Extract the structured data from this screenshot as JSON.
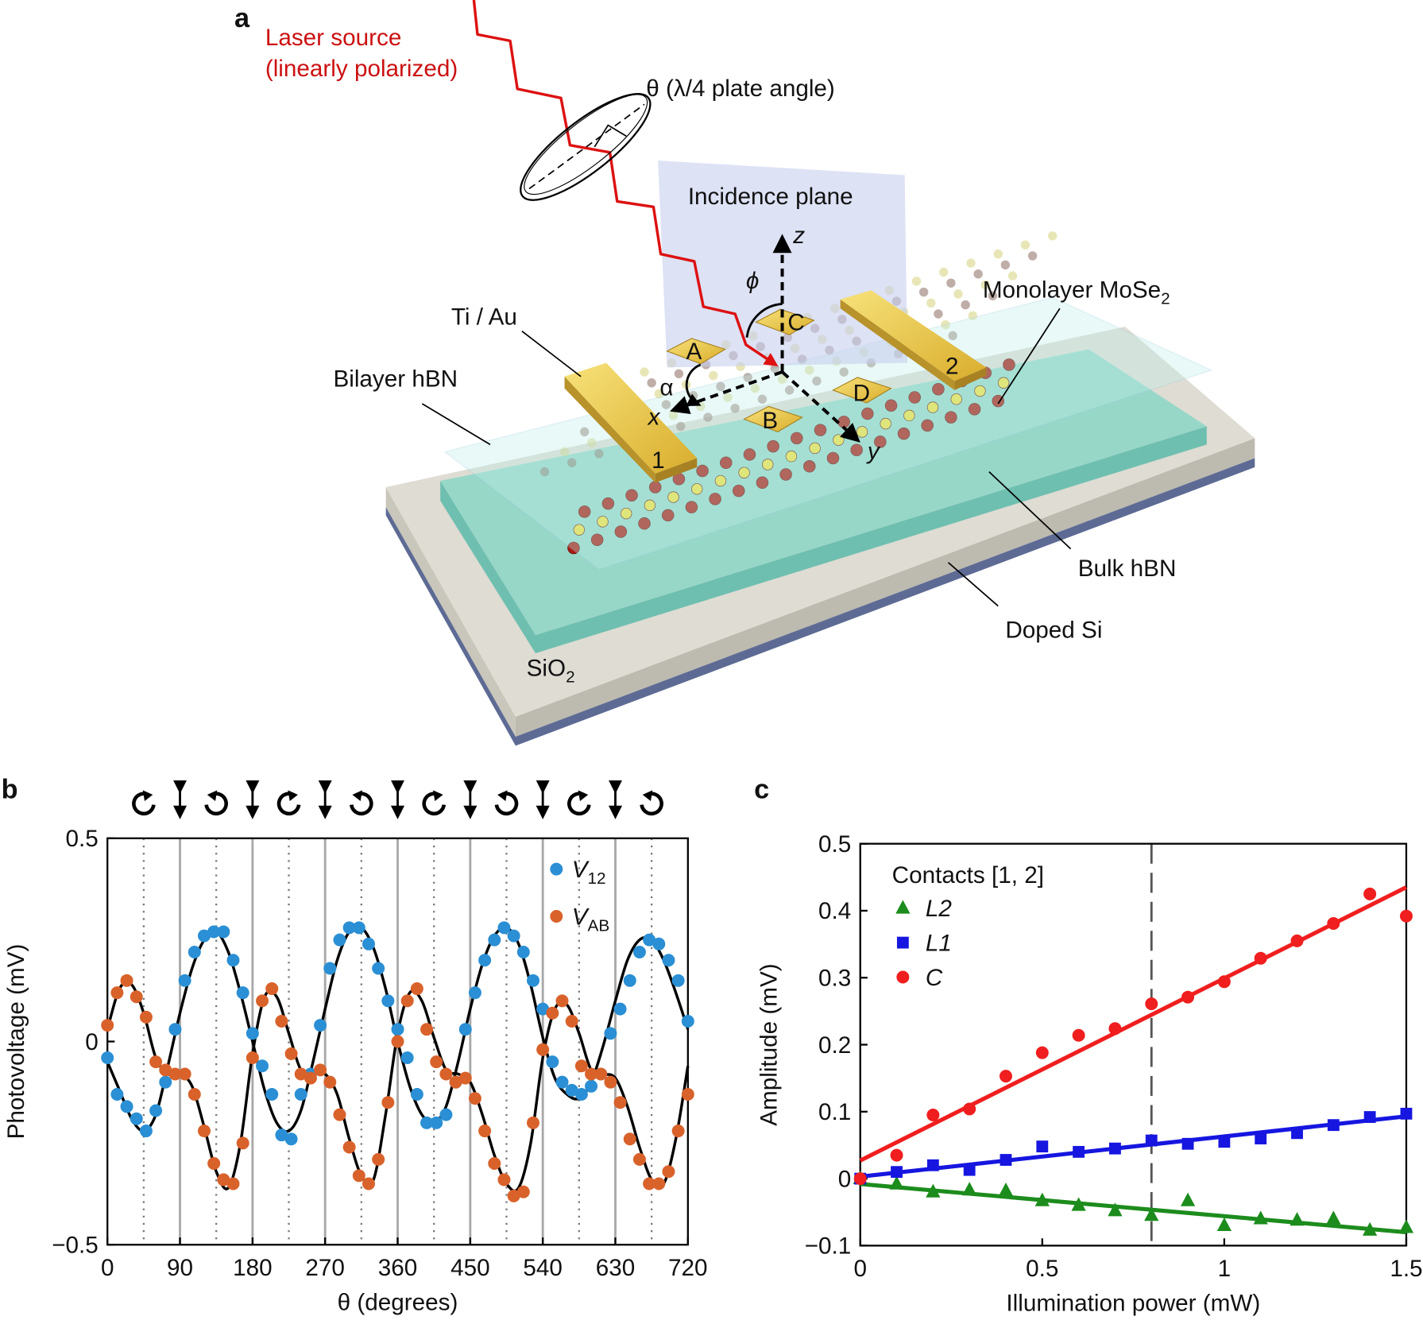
{
  "diagram": {
    "panel_label": "a",
    "laser_source": "Laser source",
    "laser_polarization": "(linearly polarized)",
    "waveplate": "θ (λ/4 plate angle)",
    "incidence_plane": "Incidence plane",
    "axis_z": "z",
    "angle_phi": "ϕ",
    "monolayer": "Monolayer MoSe2",
    "contacts_metal": "Ti / Au",
    "bilayer": "Bilayer hBN",
    "contact_a": "A",
    "contact_b": "B",
    "contact_c": "C",
    "contact_d": "D",
    "contact_1": "1",
    "contact_2": "2",
    "angle_alpha": "α",
    "axis_x": "x",
    "axis_y": "y",
    "bulk": "Bulk hBN",
    "substrate": "Doped Si",
    "oxide": "SiO2"
  },
  "chart_data": [
    {
      "type": "scatter",
      "panel_label": "b",
      "xlabel": "θ (degrees)",
      "ylabel": "Photovoltage (mV)",
      "xlim": [
        0,
        720
      ],
      "ylim": [
        -0.5,
        0.5
      ],
      "xticks": [
        0,
        90,
        180,
        270,
        360,
        450,
        540,
        630,
        720
      ],
      "yticks": [
        0.5,
        0,
        {
          "value": -0.5,
          "label": "−0.5"
        }
      ],
      "legend": "upper right",
      "vlines": {
        "solid": [
          90,
          180,
          270,
          360,
          450,
          540,
          630
        ],
        "dotted": [
          45,
          135,
          225,
          315,
          405,
          495,
          585,
          675
        ]
      },
      "series": [
        {
          "name": "V12",
          "color": "#2a8fd4",
          "marker": "circle",
          "x": [
            0,
            12,
            24,
            36,
            48,
            60,
            72,
            84,
            96,
            108,
            120,
            132,
            144,
            156,
            168,
            180,
            192,
            204,
            216,
            228,
            240,
            252,
            264,
            276,
            288,
            300,
            312,
            324,
            336,
            348,
            360,
            372,
            384,
            396,
            408,
            420,
            432,
            444,
            456,
            468,
            480,
            492,
            504,
            516,
            528,
            540,
            552,
            564,
            576,
            588,
            600,
            612,
            624,
            636,
            648,
            660,
            672,
            684,
            696,
            708,
            720
          ],
          "values": [
            -0.04,
            -0.13,
            -0.16,
            -0.19,
            -0.22,
            -0.17,
            -0.1,
            0.03,
            0.15,
            0.22,
            0.26,
            0.27,
            0.27,
            0.2,
            0.12,
            0.02,
            -0.06,
            -0.13,
            -0.23,
            -0.24,
            -0.13,
            -0.08,
            0.04,
            0.18,
            0.25,
            0.28,
            0.28,
            0.24,
            0.18,
            0.1,
            0.03,
            -0.04,
            -0.13,
            -0.2,
            -0.2,
            -0.18,
            -0.1,
            0.03,
            0.12,
            0.2,
            0.25,
            0.28,
            0.26,
            0.22,
            0.15,
            0.08,
            -0.05,
            -0.1,
            -0.12,
            -0.13,
            -0.11,
            -0.08,
            0.02,
            0.08,
            0.15,
            0.22,
            0.25,
            0.24,
            0.2,
            0.15,
            0.05
          ]
        },
        {
          "name": "VAB",
          "color": "#d9622b",
          "marker": "circle",
          "x": [
            0,
            12,
            24,
            36,
            48,
            60,
            72,
            84,
            96,
            108,
            120,
            132,
            144,
            156,
            168,
            180,
            192,
            204,
            216,
            228,
            240,
            252,
            264,
            276,
            288,
            300,
            312,
            324,
            336,
            348,
            360,
            372,
            384,
            396,
            408,
            420,
            432,
            444,
            456,
            468,
            480,
            492,
            504,
            516,
            528,
            540,
            552,
            564,
            576,
            588,
            600,
            612,
            624,
            636,
            648,
            660,
            672,
            684,
            696,
            708,
            720
          ],
          "values": [
            0.04,
            0.12,
            0.15,
            0.11,
            0.06,
            -0.05,
            -0.07,
            -0.08,
            -0.08,
            -0.13,
            -0.22,
            -0.3,
            -0.34,
            -0.35,
            -0.25,
            -0.04,
            0.1,
            0.13,
            0.05,
            -0.03,
            -0.08,
            -0.09,
            -0.07,
            -0.1,
            -0.18,
            -0.26,
            -0.33,
            -0.35,
            -0.29,
            -0.15,
            0.0,
            0.1,
            0.13,
            0.03,
            -0.05,
            -0.08,
            -0.1,
            -0.09,
            -0.14,
            -0.22,
            -0.3,
            -0.34,
            -0.38,
            -0.37,
            -0.2,
            -0.02,
            0.07,
            0.1,
            0.05,
            -0.06,
            -0.08,
            -0.08,
            -0.1,
            -0.15,
            -0.24,
            -0.29,
            -0.35,
            -0.35,
            -0.32,
            -0.22,
            -0.13
          ]
        },
        {
          "color": "#000000",
          "style": "line",
          "x": [
            0,
            15,
            30,
            45,
            60,
            75,
            90,
            105,
            120,
            135,
            150,
            165,
            180,
            195,
            210,
            225,
            240,
            255,
            270,
            285,
            300,
            315,
            330,
            345,
            360,
            375,
            390,
            405,
            420,
            435,
            450,
            465,
            480,
            495,
            510,
            525,
            540,
            555,
            570,
            585,
            600,
            615,
            630,
            645,
            660,
            675,
            690,
            705,
            720
          ],
          "values": [
            -0.05,
            -0.12,
            -0.19,
            -0.22,
            -0.18,
            -0.06,
            0.07,
            0.18,
            0.25,
            0.27,
            0.22,
            0.12,
            0.0,
            -0.12,
            -0.2,
            -0.22,
            -0.17,
            -0.05,
            0.08,
            0.2,
            0.27,
            0.28,
            0.23,
            0.13,
            0.0,
            -0.11,
            -0.18,
            -0.2,
            -0.16,
            -0.05,
            0.08,
            0.19,
            0.26,
            0.28,
            0.24,
            0.14,
            0.01,
            -0.09,
            -0.13,
            -0.14,
            -0.1,
            -0.01,
            0.1,
            0.2,
            0.25,
            0.25,
            0.2,
            0.12,
            0.03
          ]
        },
        {
          "color": "#000000",
          "style": "line",
          "x": [
            0,
            15,
            30,
            45,
            60,
            75,
            90,
            105,
            120,
            135,
            150,
            165,
            180,
            195,
            210,
            225,
            240,
            255,
            270,
            285,
            300,
            315,
            330,
            345,
            360,
            375,
            390,
            405,
            420,
            435,
            450,
            465,
            480,
            495,
            510,
            525,
            540,
            555,
            570,
            585,
            600,
            615,
            630,
            645,
            660,
            675,
            690,
            705,
            720
          ],
          "values": [
            0.03,
            0.13,
            0.14,
            0.07,
            -0.04,
            -0.08,
            -0.08,
            -0.11,
            -0.21,
            -0.32,
            -0.36,
            -0.25,
            -0.03,
            0.11,
            0.11,
            0.02,
            -0.07,
            -0.08,
            -0.08,
            -0.13,
            -0.24,
            -0.33,
            -0.34,
            -0.18,
            0.02,
            0.12,
            0.1,
            0.01,
            -0.07,
            -0.08,
            -0.1,
            -0.18,
            -0.28,
            -0.35,
            -0.36,
            -0.25,
            -0.04,
            0.08,
            0.09,
            0.02,
            -0.07,
            -0.08,
            -0.09,
            -0.16,
            -0.26,
            -0.34,
            -0.35,
            -0.24,
            -0.06
          ]
        }
      ]
    },
    {
      "type": "scatter",
      "panel_label": "c",
      "xlabel": "Illumination power (mW)",
      "ylabel": "Amplitude (mV)",
      "xlim": [
        0,
        1.5
      ],
      "ylim": [
        -0.1,
        0.5
      ],
      "xticks": [
        0,
        0.5,
        1,
        1.5
      ],
      "yticks": [
        0.5,
        0.4,
        0.3,
        0.2,
        0.1,
        0,
        {
          "value": -0.1,
          "label": "−0.1"
        }
      ],
      "legend": "upper left",
      "legend_title": "Contacts [1, 2]",
      "vlines": {
        "dashed": [
          0.8
        ]
      },
      "series": [
        {
          "name": "L2",
          "color": "#1c8c1c",
          "marker": "triangle",
          "x": [
            0,
            0.1,
            0.2,
            0.3,
            0.4,
            0.5,
            0.6,
            0.7,
            0.8,
            0.9,
            1,
            1.1,
            1.2,
            1.3,
            1.4,
            1.5
          ],
          "values": [
            0.0,
            -0.008,
            -0.02,
            -0.017,
            -0.018,
            -0.033,
            -0.04,
            -0.048,
            -0.055,
            -0.033,
            -0.07,
            -0.06,
            -0.062,
            -0.06,
            -0.077,
            -0.073
          ]
        },
        {
          "name": "L1",
          "color": "#1616e0",
          "marker": "square",
          "x": [
            0,
            0.1,
            0.2,
            0.3,
            0.4,
            0.5,
            0.6,
            0.7,
            0.8,
            0.9,
            1,
            1.1,
            1.2,
            1.3,
            1.4,
            1.5
          ],
          "values": [
            0.0,
            0.01,
            0.02,
            0.013,
            0.028,
            0.048,
            0.04,
            0.045,
            0.057,
            0.052,
            0.055,
            0.06,
            0.068,
            0.08,
            0.092,
            0.097
          ]
        },
        {
          "name": "C",
          "color": "#f01e1e",
          "marker": "circle",
          "x": [
            0,
            0.1,
            0.2,
            0.3,
            0.4,
            0.5,
            0.6,
            0.7,
            0.8,
            0.9,
            1,
            1.1,
            1.2,
            1.3,
            1.4,
            1.5
          ],
          "values": [
            0.0,
            0.035,
            0.095,
            0.104,
            0.153,
            0.188,
            0.214,
            0.224,
            0.261,
            0.271,
            0.294,
            0.329,
            0.355,
            0.381,
            0.425,
            0.392
          ]
        },
        {
          "color": "#1c8c1c",
          "style": "line",
          "x": [
            0,
            1.5
          ],
          "values": [
            -0.008,
            -0.08
          ]
        },
        {
          "color": "#1616e0",
          "style": "line",
          "x": [
            0,
            1.5
          ],
          "values": [
            0.003,
            0.093
          ]
        },
        {
          "color": "#f01e1e",
          "style": "line",
          "x": [
            0,
            1.5
          ],
          "values": [
            0.027,
            0.435
          ]
        }
      ]
    }
  ]
}
